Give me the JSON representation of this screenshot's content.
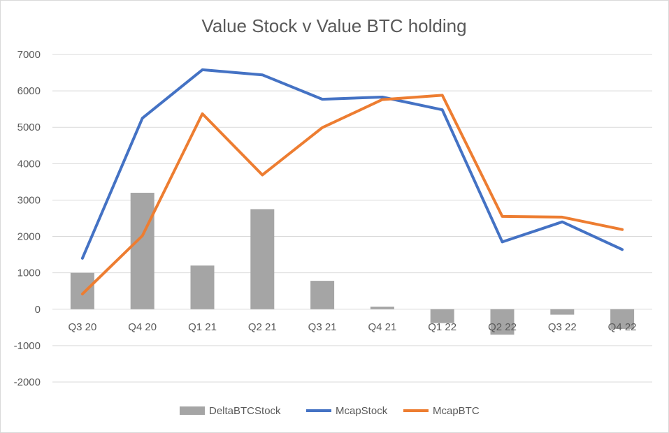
{
  "chart_data": {
    "type": "bar",
    "title": "Value Stock v Value BTC holding",
    "categories": [
      "Q3 20",
      "Q4 20",
      "Q1 21",
      "Q2 21",
      "Q3 21",
      "Q4 21",
      "Q1 22",
      "Q2 22",
      "Q3 22",
      "Q4 22"
    ],
    "ylim": [
      -2000,
      7000
    ],
    "yticks": [
      -2000,
      -1000,
      0,
      1000,
      2000,
      3000,
      4000,
      5000,
      6000,
      7000
    ],
    "grid": true,
    "legend_position": "bottom",
    "series": [
      {
        "name": "DeltaBTCStock",
        "type": "bar",
        "color": "#a5a5a5",
        "values": [
          1000,
          3200,
          1200,
          2750,
          780,
          70,
          -380,
          -700,
          -150,
          -540
        ]
      },
      {
        "name": "McapStock",
        "type": "line",
        "color": "#4472c4",
        "values": [
          1400,
          5250,
          6580,
          6440,
          5770,
          5830,
          5480,
          1850,
          2400,
          1640
        ]
      },
      {
        "name": "McapBTC",
        "type": "line",
        "color": "#ed7d31",
        "values": [
          420,
          2020,
          5370,
          3690,
          4990,
          5760,
          5880,
          2550,
          2530,
          2190
        ]
      }
    ]
  }
}
